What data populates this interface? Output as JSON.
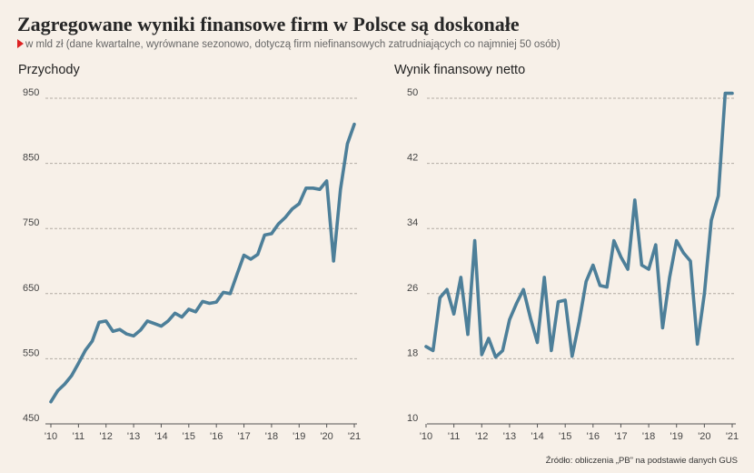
{
  "header": {
    "title": "Zagregowane wyniki finansowe firm w Polsce są doskonałe",
    "subtitle": "w mld zł (dane kwartalne, wyrównane sezonowo, dotyczą firm niefinansowych zatrudniających co najmniej 50 osób)"
  },
  "source": "Źródło: obliczenia „PB” na podstawie danych GUS",
  "colors": {
    "line": "#4d7f99",
    "grid": "#b3aca4",
    "axis": "#555555",
    "marker": "#dd2222",
    "background": "#f7f0e8"
  },
  "chart_data": [
    {
      "type": "line",
      "title": "Przychody",
      "x_ticks": [
        "'10",
        "'11",
        "'12",
        "'13",
        "'14",
        "'15",
        "'16",
        "'17",
        "'18",
        "'19",
        "'20",
        "'21"
      ],
      "y_ticks": [
        "950",
        "850",
        "750",
        "650",
        "550",
        "450"
      ],
      "ylim": [
        450,
        950
      ],
      "x": [
        2010,
        2010.25,
        2010.5,
        2010.75,
        2011,
        2011.25,
        2011.5,
        2011.75,
        2012,
        2012.25,
        2012.5,
        2012.75,
        2013,
        2013.25,
        2013.5,
        2013.75,
        2014,
        2014.25,
        2014.5,
        2014.75,
        2015,
        2015.25,
        2015.5,
        2015.75,
        2016,
        2016.25,
        2016.5,
        2016.75,
        2017,
        2017.25,
        2017.5,
        2017.75,
        2018,
        2018.25,
        2018.5,
        2018.75,
        2019,
        2019.25,
        2019.5,
        2019.75,
        2020,
        2020.25,
        2020.5,
        2020.75,
        2021
      ],
      "values": [
        484,
        501,
        511,
        524,
        543,
        563,
        577,
        606,
        608,
        592,
        595,
        588,
        585,
        594,
        608,
        604,
        600,
        608,
        620,
        614,
        626,
        622,
        638,
        635,
        637,
        652,
        650,
        680,
        709,
        703,
        710,
        740,
        742,
        757,
        767,
        780,
        788,
        812,
        812,
        810,
        823,
        700,
        810,
        880,
        910
      ],
      "grid": true
    },
    {
      "type": "line",
      "title": "Wynik finansowy netto",
      "x_ticks": [
        "'10",
        "'11",
        "'12",
        "'13",
        "'14",
        "'15",
        "'16",
        "'17",
        "'18",
        "'19",
        "'20",
        "'21"
      ],
      "y_ticks": [
        "50",
        "42",
        "34",
        "26",
        "18",
        "10"
      ],
      "ylim": [
        10,
        50
      ],
      "x": [
        2010,
        2010.25,
        2010.5,
        2010.75,
        2011,
        2011.25,
        2011.5,
        2011.75,
        2012,
        2012.25,
        2012.5,
        2012.75,
        2013,
        2013.25,
        2013.5,
        2013.75,
        2014,
        2014.25,
        2014.5,
        2014.75,
        2015,
        2015.25,
        2015.5,
        2015.75,
        2016,
        2016.25,
        2016.5,
        2016.75,
        2017,
        2017.25,
        2017.5,
        2017.75,
        2018,
        2018.25,
        2018.5,
        2018.75,
        2019,
        2019.25,
        2019.5,
        2019.75,
        2020,
        2020.25,
        2020.5,
        2020.75,
        2021
      ],
      "values": [
        19.5,
        19.0,
        25.5,
        26.5,
        23.5,
        28.0,
        21.0,
        32.5,
        18.5,
        20.5,
        18.2,
        19.0,
        22.8,
        24.8,
        26.5,
        23.0,
        20.0,
        28.0,
        19.0,
        25.0,
        25.2,
        18.3,
        22.5,
        27.5,
        29.5,
        27.0,
        26.8,
        32.5,
        30.5,
        29.0,
        37.5,
        29.5,
        29.0,
        32.0,
        21.8,
        28.0,
        32.5,
        31.0,
        30.0,
        19.8,
        26.0,
        35.0,
        38.0,
        50.6,
        50.6
      ],
      "grid": true
    }
  ]
}
